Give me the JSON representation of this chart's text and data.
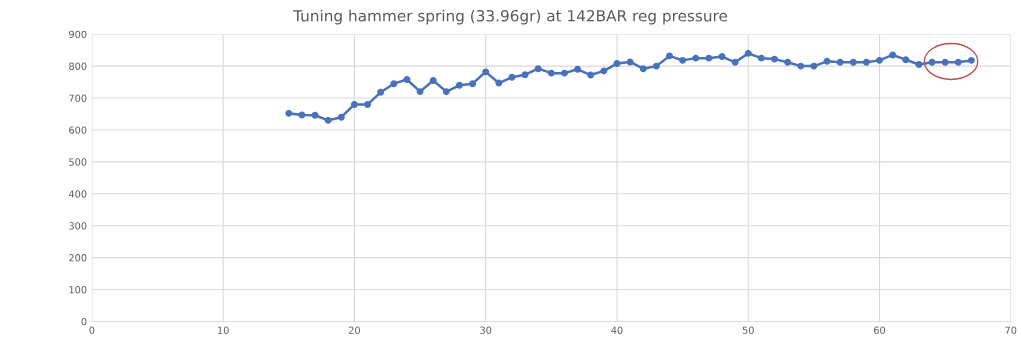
{
  "chart_data": {
    "type": "line",
    "title": "Tuning hammer spring (33.96gr) at 142BAR reg pressure",
    "x": [
      15,
      16,
      17,
      18,
      19,
      20,
      21,
      22,
      23,
      24,
      25,
      26,
      27,
      28,
      29,
      30,
      31,
      32,
      33,
      34,
      35,
      36,
      37,
      38,
      39,
      40,
      41,
      42,
      43,
      44,
      45,
      46,
      47,
      48,
      49,
      50,
      51,
      52,
      53,
      54,
      55,
      56,
      57,
      58,
      59,
      60,
      61,
      62,
      63,
      64,
      65,
      66,
      67
    ],
    "series": [
      {
        "color": "#4a72b8",
        "values": [
          652,
          647,
          646,
          630,
          640,
          680,
          680,
          718,
          745,
          758,
          720,
          755,
          720,
          740,
          745,
          782,
          747,
          765,
          773,
          792,
          778,
          778,
          790,
          772,
          785,
          808,
          813,
          792,
          800,
          832,
          818,
          825,
          825,
          830,
          812,
          840,
          825,
          822,
          812,
          800,
          800,
          815,
          812,
          812,
          812,
          818,
          835,
          820,
          805,
          812,
          812,
          812,
          818
        ]
      }
    ],
    "xlim": [
      0,
      70
    ],
    "xticks": [
      0,
      10,
      20,
      30,
      40,
      50,
      60,
      70
    ],
    "ylim": [
      0,
      900
    ],
    "yticks": [
      0,
      100,
      200,
      300,
      400,
      500,
      600,
      700,
      800,
      900
    ],
    "grid": true,
    "marker": "circle",
    "line_style": "solid",
    "legend": false
  }
}
